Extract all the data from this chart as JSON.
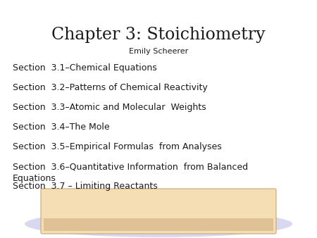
{
  "title": "Chapter 3: Stoichiometry",
  "subtitle": "Emily Scheerer",
  "sections": [
    "Section  3.1–Chemical Equations",
    "Section  3.2–Patterns of Chemical Reactivity",
    "Section  3.3–Atomic and Molecular  Weights",
    "Section  3.4–The Mole",
    "Section  3.5–Empirical Formulas  from Analyses",
    "Section  3.6–Quantitative Information  from Balanced\nEquations",
    "Section  3.7 – Limiting Reactants"
  ],
  "bg_color": "#ffffff",
  "text_color": "#1a1a1a",
  "title_fontsize": 17,
  "subtitle_fontsize": 8,
  "section_fontsize": 9,
  "desk_color": "#f5deb3",
  "desk_edge_color": "#c8a878",
  "floor_color": "#d8d8f0"
}
